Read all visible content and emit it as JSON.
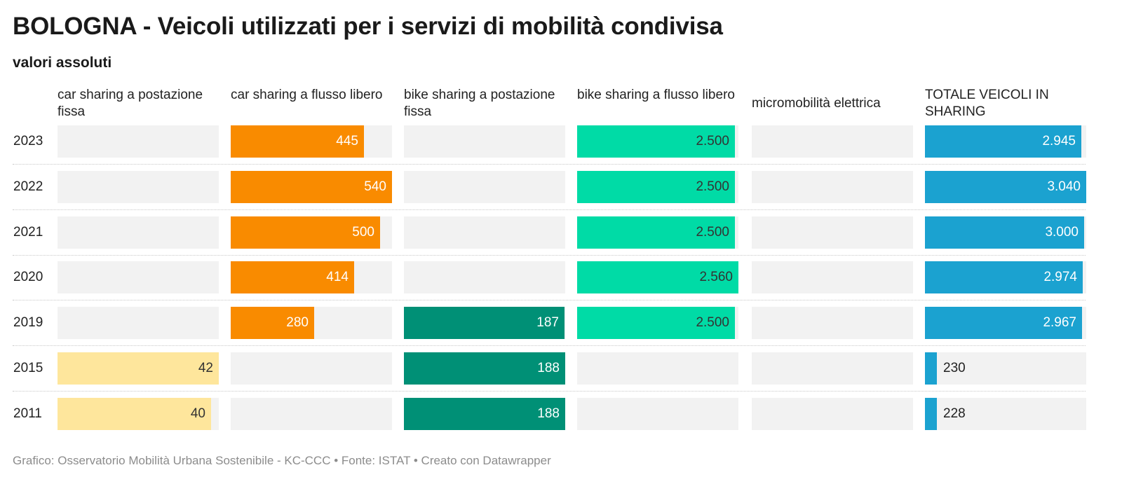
{
  "title": "BOLOGNA - Veicoli utilizzati per i servizi di mobilità condivisa",
  "subtitle": "valori assoluti",
  "footer": "Grafico: Osservatorio Mobilità Urbana Sostenibile - KC-CCC • Fonte: ISTAT • Creato con Datawrapper",
  "chart_data": {
    "type": "bar",
    "orientation": "horizontal",
    "layout": "small-multiples",
    "categories": [
      "2023",
      "2022",
      "2021",
      "2020",
      "2019",
      "2015",
      "2011"
    ],
    "series": [
      {
        "name": "car sharing a postazione fissa",
        "color": "#fee69c",
        "label_color": "#333333",
        "values": [
          null,
          null,
          null,
          null,
          null,
          42,
          40
        ],
        "labels": [
          "",
          "",
          "",
          "",
          "",
          "42",
          "40"
        ],
        "max": 42
      },
      {
        "name": "car sharing a flusso libero",
        "color": "#f98b00",
        "label_color": "#ffffff",
        "values": [
          445,
          540,
          500,
          414,
          280,
          null,
          null
        ],
        "labels": [
          "445",
          "540",
          "500",
          "414",
          "280",
          "",
          ""
        ],
        "max": 540
      },
      {
        "name": "bike sharing a postazione fissa",
        "color": "#009076",
        "label_color": "#ffffff",
        "values": [
          null,
          null,
          null,
          null,
          187,
          188,
          188
        ],
        "labels": [
          "",
          "",
          "",
          "",
          "187",
          "188",
          "188"
        ],
        "max": 188
      },
      {
        "name": "bike sharing a flusso libero",
        "color": "#00dba6",
        "label_color": "#333333",
        "values": [
          2500,
          2500,
          2500,
          2560,
          2500,
          null,
          null
        ],
        "labels": [
          "2.500",
          "2.500",
          "2.500",
          "2.560",
          "2.500",
          "",
          ""
        ],
        "max": 2560
      },
      {
        "name": "micromobilità elettrica",
        "color": "#7f7f7f",
        "label_color": "#333333",
        "values": [
          null,
          null,
          null,
          null,
          null,
          null,
          null
        ],
        "labels": [
          "",
          "",
          "",
          "",
          "",
          "",
          ""
        ],
        "max": 1
      },
      {
        "name": "TOTALE VEICOLI IN SHARING",
        "color": "#1ba2d0",
        "label_color": "#ffffff",
        "values": [
          2945,
          3040,
          3000,
          2974,
          2967,
          230,
          228
        ],
        "labels": [
          "2.945",
          "3.040",
          "3.000",
          "2.974",
          "2.967",
          "230",
          "228"
        ],
        "max": 3040
      }
    ],
    "background_color": "#f2f2f2",
    "legend": "none",
    "grid": false
  }
}
